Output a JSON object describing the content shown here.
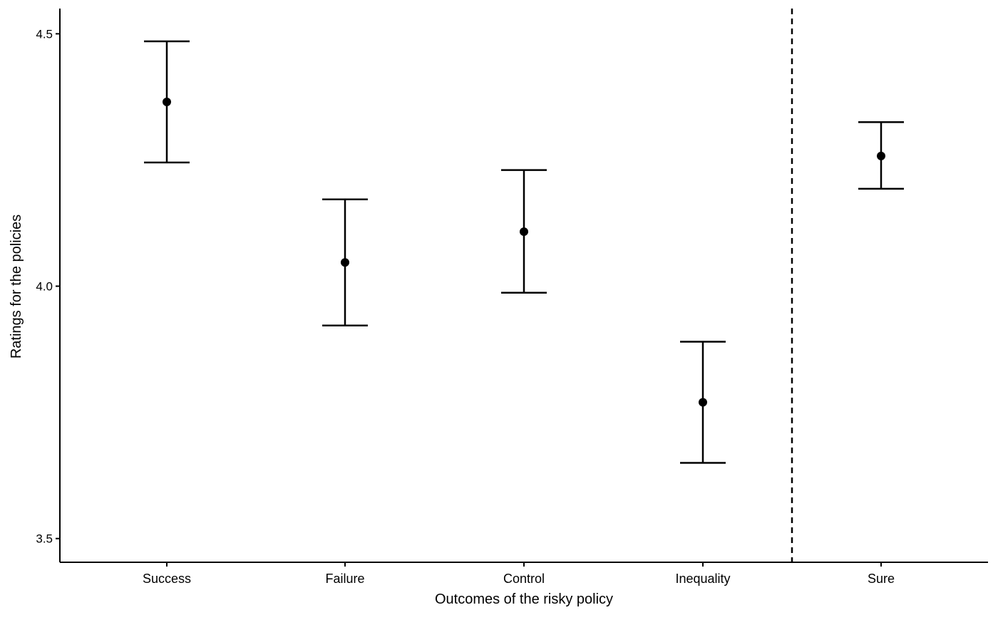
{
  "chart_data": {
    "type": "errorbar",
    "categories": [
      "Success",
      "Failure",
      "Control",
      "Inequality",
      "Sure"
    ],
    "means": [
      4.365,
      4.047,
      4.108,
      3.77,
      4.258
    ],
    "lower": [
      4.245,
      3.922,
      3.987,
      3.65,
      4.193
    ],
    "upper": [
      4.485,
      4.172,
      4.23,
      3.89,
      4.325
    ],
    "xlabel": "Outcomes of the risky policy",
    "ylabel": "Ratings for the policies",
    "ylim": [
      3.453,
      4.55
    ],
    "yticks": [
      "3.5",
      "4.0",
      "4.5"
    ],
    "divider_after_category": "Inequality",
    "divider_style": "dashed",
    "grid": false,
    "color": "#000000"
  }
}
